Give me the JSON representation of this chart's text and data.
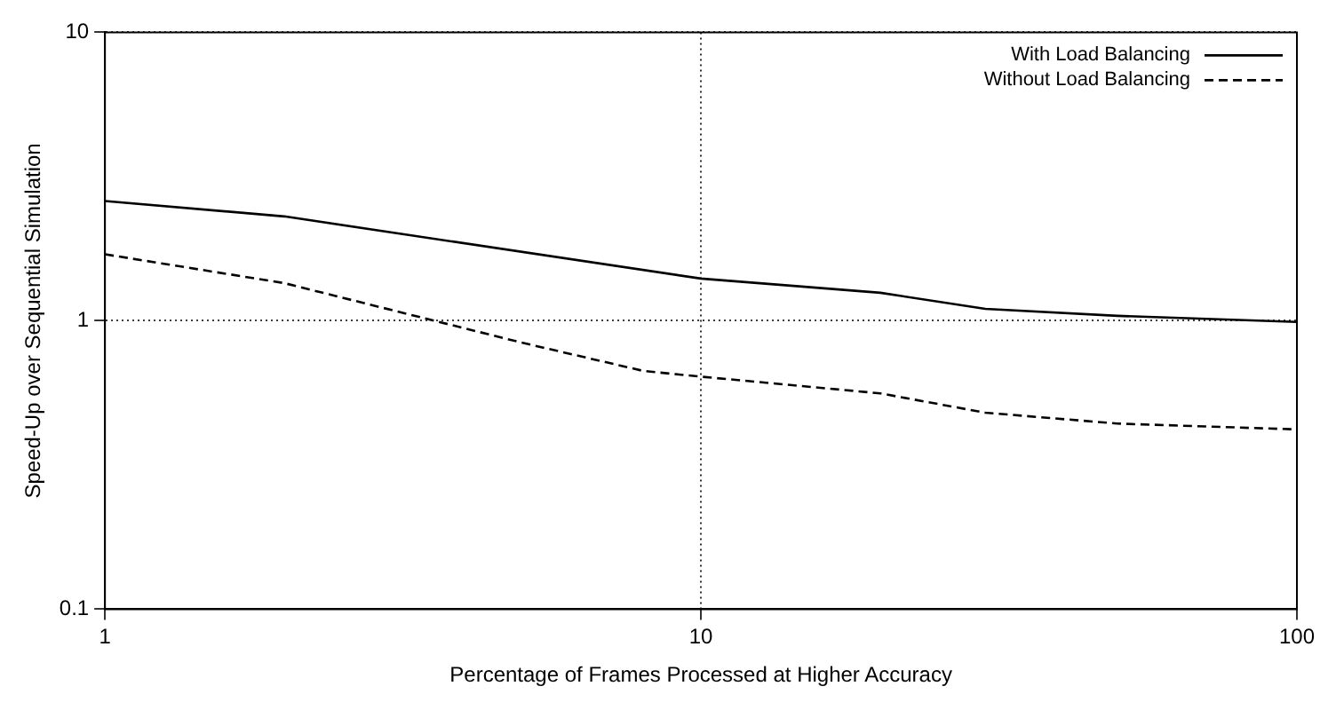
{
  "chart_data": {
    "type": "line",
    "xlabel": "Percentage of Frames Processed at Higher Accuracy",
    "ylabel": "Speed-Up over Sequential Simulation",
    "log": "xy",
    "xlim": [
      1,
      100
    ],
    "xticks": [
      1,
      10,
      100
    ],
    "ylim": [
      0.1,
      10
    ],
    "yticks": [
      0.1,
      1,
      10
    ],
    "grid": true,
    "legend": "top right",
    "marker": "none",
    "series": [
      {
        "name": "With Load Balancing",
        "color": "#000000",
        "line_style": "solid",
        "x": [
          1,
          2,
          10,
          20,
          30,
          50,
          100
        ],
        "values": [
          2.6,
          2.3,
          1.4,
          1.25,
          1.1,
          1.04,
          0.99
        ]
      },
      {
        "name": "Without Load Balancing",
        "color": "#000000",
        "line_style": "dashed",
        "x": [
          1,
          2,
          5,
          8,
          10,
          20,
          30,
          50,
          100
        ],
        "values": [
          1.7,
          1.35,
          0.84,
          0.67,
          0.64,
          0.56,
          0.48,
          0.44,
          0.42
        ]
      }
    ]
  }
}
